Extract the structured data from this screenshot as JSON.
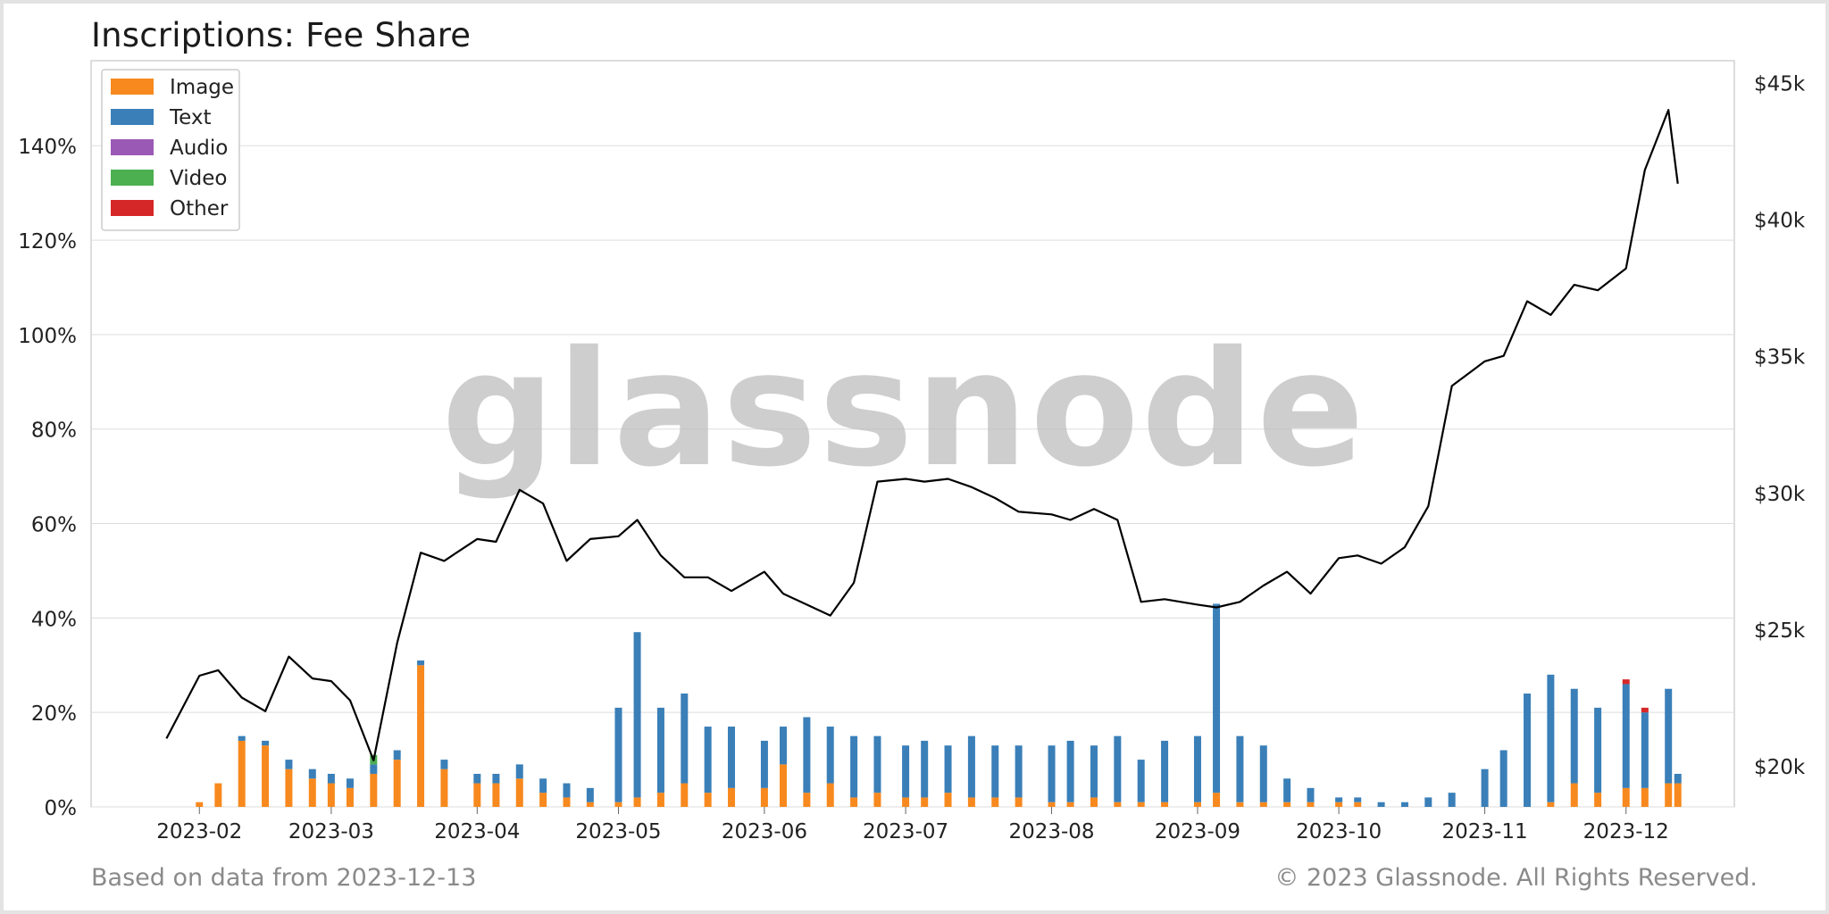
{
  "title": "Inscriptions: Fee Share",
  "footer": {
    "left": "Based on data from 2023-12-13",
    "right": "© 2023 Glassnode. All Rights Reserved."
  },
  "watermark": "glassnode",
  "colors": {
    "image": "#f7891e",
    "text": "#3a7fb8",
    "audio": "#9b59b6",
    "video": "#4caf50",
    "other": "#d62728",
    "price_line": "#000000",
    "grid": "#dddddd"
  },
  "chart_data": {
    "type": "bar",
    "stacked": true,
    "title": "Inscriptions: Fee Share",
    "legend_position": "top-left",
    "grid": true,
    "x_ticks": [
      "2023-02",
      "2023-03",
      "2023-04",
      "2023-05",
      "2023-06",
      "2023-07",
      "2023-08",
      "2023-09",
      "2023-10",
      "2023-11",
      "2023-12"
    ],
    "y_left": {
      "ticks": [
        "0%",
        "20%",
        "40%",
        "60%",
        "80%",
        "100%",
        "120%",
        "140%"
      ],
      "range": [
        0,
        158
      ]
    },
    "y_right": {
      "ticks": [
        "$20k",
        "$25k",
        "$30k",
        "$35k",
        "$40k",
        "$45k"
      ],
      "range": [
        18500,
        45800
      ]
    },
    "legend": [
      "Image",
      "Text",
      "Audio",
      "Video",
      "Other"
    ],
    "x": [
      "2023-01-25",
      "2023-02-01",
      "2023-02-05",
      "2023-02-10",
      "2023-02-15",
      "2023-02-20",
      "2023-02-25",
      "2023-03-01",
      "2023-03-05",
      "2023-03-10",
      "2023-03-15",
      "2023-03-20",
      "2023-03-25",
      "2023-04-01",
      "2023-04-05",
      "2023-04-10",
      "2023-04-15",
      "2023-04-20",
      "2023-04-25",
      "2023-05-01",
      "2023-05-05",
      "2023-05-10",
      "2023-05-15",
      "2023-05-20",
      "2023-05-25",
      "2023-06-01",
      "2023-06-05",
      "2023-06-10",
      "2023-06-15",
      "2023-06-20",
      "2023-06-25",
      "2023-07-01",
      "2023-07-05",
      "2023-07-10",
      "2023-07-15",
      "2023-07-20",
      "2023-07-25",
      "2023-08-01",
      "2023-08-05",
      "2023-08-10",
      "2023-08-15",
      "2023-08-20",
      "2023-08-25",
      "2023-09-01",
      "2023-09-05",
      "2023-09-10",
      "2023-09-15",
      "2023-09-20",
      "2023-09-25",
      "2023-10-01",
      "2023-10-05",
      "2023-10-10",
      "2023-10-15",
      "2023-10-20",
      "2023-10-25",
      "2023-11-01",
      "2023-11-05",
      "2023-11-10",
      "2023-11-15",
      "2023-11-20",
      "2023-11-25",
      "2023-12-01",
      "2023-12-05",
      "2023-12-10",
      "2023-12-12"
    ],
    "series": [
      {
        "name": "Image",
        "values": [
          0,
          1,
          5,
          14,
          13,
          8,
          6,
          5,
          4,
          7,
          10,
          30,
          8,
          5,
          5,
          6,
          3,
          2,
          1,
          1,
          2,
          3,
          5,
          3,
          4,
          4,
          9,
          3,
          5,
          2,
          3,
          2,
          2,
          3,
          2,
          2,
          2,
          1,
          1,
          2,
          1,
          1,
          1,
          1,
          3,
          1,
          1,
          1,
          1,
          1,
          1,
          0,
          0,
          0,
          0,
          0,
          0,
          0,
          1,
          5,
          3,
          4,
          4,
          5,
          5
        ]
      },
      {
        "name": "Text",
        "values": [
          0,
          0,
          0,
          1,
          1,
          2,
          2,
          2,
          2,
          2,
          2,
          1,
          2,
          2,
          2,
          3,
          3,
          3,
          3,
          20,
          35,
          18,
          19,
          14,
          13,
          10,
          8,
          16,
          12,
          13,
          12,
          11,
          12,
          10,
          13,
          11,
          11,
          12,
          13,
          11,
          14,
          9,
          13,
          14,
          40,
          14,
          12,
          5,
          3,
          1,
          1,
          1,
          1,
          2,
          3,
          8,
          12,
          24,
          27,
          20,
          18,
          22,
          16,
          20,
          2
        ]
      },
      {
        "name": "Audio",
        "values": [
          0,
          0,
          0,
          0,
          0,
          0,
          0,
          0,
          0,
          0,
          0,
          0,
          0,
          0,
          0,
          0,
          0,
          0,
          0,
          0,
          0,
          0,
          0,
          0,
          0,
          0,
          0,
          0,
          0,
          0,
          0,
          0,
          0,
          0,
          0,
          0,
          0,
          0,
          0,
          0,
          0,
          0,
          0,
          0,
          0,
          0,
          0,
          0,
          0,
          0,
          0,
          0,
          0,
          0,
          0,
          0,
          0,
          0,
          0,
          0,
          0,
          0,
          0,
          0,
          0
        ]
      },
      {
        "name": "Video",
        "values": [
          0,
          0,
          0,
          0,
          0,
          0,
          0,
          0,
          0,
          2,
          0,
          0,
          0,
          0,
          0,
          0,
          0,
          0,
          0,
          0,
          0,
          0,
          0,
          0,
          0,
          0,
          0,
          0,
          0,
          0,
          0,
          0,
          0,
          0,
          0,
          0,
          0,
          0,
          0,
          0,
          0,
          0,
          0,
          0,
          0,
          0,
          0,
          0,
          0,
          0,
          0,
          0,
          0,
          0,
          0,
          0,
          0,
          0,
          0,
          0,
          0,
          0,
          0,
          0,
          0
        ]
      },
      {
        "name": "Other",
        "values": [
          0,
          0,
          0,
          0,
          0,
          0,
          0,
          0,
          0,
          0,
          0,
          0,
          0,
          0,
          0,
          0,
          0,
          0,
          0,
          0,
          0,
          0,
          0,
          0,
          0,
          0,
          0,
          0,
          0,
          0,
          0,
          0,
          0,
          0,
          0,
          0,
          0,
          0,
          0,
          0,
          0,
          0,
          0,
          0,
          0,
          0,
          0,
          0,
          0,
          0,
          0,
          0,
          0,
          0,
          0,
          0,
          0,
          0,
          0,
          0,
          0,
          1,
          1,
          0,
          0
        ]
      },
      {
        "name": "BTC Price",
        "axis": "right",
        "type": "line",
        "values": [
          21000,
          23300,
          23500,
          22500,
          22000,
          24000,
          23200,
          23100,
          22400,
          20200,
          24500,
          27800,
          27500,
          28300,
          28200,
          30100,
          29600,
          27500,
          28300,
          28400,
          29000,
          27700,
          26900,
          26900,
          26400,
          27100,
          26300,
          25900,
          25500,
          26700,
          30400,
          30500,
          30400,
          30500,
          30200,
          29800,
          29300,
          29200,
          29000,
          29400,
          29000,
          26000,
          26100,
          25900,
          25800,
          26000,
          26600,
          27100,
          26300,
          27600,
          27700,
          27400,
          28000,
          29500,
          33900,
          34800,
          35000,
          37000,
          36500,
          37600,
          37400,
          38200,
          41800,
          44000,
          41300
        ]
      }
    ]
  }
}
